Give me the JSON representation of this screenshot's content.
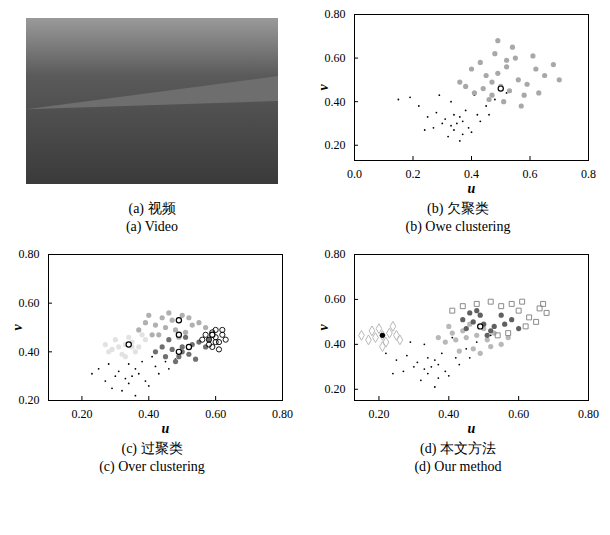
{
  "chart_data": [
    {
      "type": "image",
      "caption": [
        "(a) 视频",
        "(a) Video"
      ]
    },
    {
      "type": "scatter",
      "caption": [
        "(b) 欠聚类",
        "(b) Owe clustering"
      ],
      "x_label": "u",
      "y_label": "v",
      "xlim": [
        0,
        0.8
      ],
      "xticks": [
        0,
        0.2,
        0.4,
        0.6,
        0.8
      ],
      "ylim": [
        0.13,
        0.8
      ],
      "yticks": [
        0.2,
        0.4,
        0.6,
        0.8
      ],
      "series": [
        {
          "color": "#000000",
          "marker": "dot",
          "x": [
            0.35,
            0.33,
            0.37,
            0.31,
            0.39,
            0.34,
            0.36,
            0.3,
            0.42,
            0.28,
            0.45,
            0.25,
            0.4,
            0.32,
            0.38,
            0.27,
            0.48,
            0.22,
            0.43,
            0.36,
            0.33,
            0.29,
            0.41,
            0.19,
            0.52,
            0.15,
            0.37,
            0.46,
            0.24,
            0.34
          ],
          "y": [
            0.3,
            0.29,
            0.31,
            0.32,
            0.28,
            0.27,
            0.33,
            0.3,
            0.34,
            0.35,
            0.38,
            0.33,
            0.26,
            0.24,
            0.36,
            0.28,
            0.41,
            0.38,
            0.31,
            0.22,
            0.4,
            0.43,
            0.43,
            0.42,
            0.44,
            0.41,
            0.25,
            0.34,
            0.27,
            0.34
          ]
        },
        {
          "color": "#a8a8a8",
          "marker": "circle",
          "x": [
            0.5,
            0.47,
            0.53,
            0.44,
            0.56,
            0.49,
            0.52,
            0.41,
            0.59,
            0.46,
            0.62,
            0.38,
            0.55,
            0.48,
            0.65,
            0.43,
            0.58,
            0.51,
            0.68,
            0.45,
            0.54,
            0.61,
            0.4,
            0.57,
            0.7,
            0.49,
            0.36,
            0.63,
            0.52,
            0.47
          ],
          "y": [
            0.47,
            0.49,
            0.45,
            0.46,
            0.5,
            0.53,
            0.56,
            0.44,
            0.48,
            0.41,
            0.55,
            0.47,
            0.6,
            0.62,
            0.52,
            0.58,
            0.43,
            0.4,
            0.57,
            0.52,
            0.65,
            0.61,
            0.55,
            0.38,
            0.5,
            0.68,
            0.49,
            0.44,
            0.59,
            0.43
          ]
        },
        {
          "color": "#000000",
          "marker": "ring",
          "x": [
            0.5
          ],
          "y": [
            0.46
          ]
        }
      ]
    },
    {
      "type": "scatter",
      "caption": [
        "(c) 过聚类",
        "(c) Over clustering"
      ],
      "x_label": "u",
      "y_label": "v",
      "xlim": [
        0.1,
        0.8
      ],
      "xticks": [
        0.2,
        0.4,
        0.6,
        0.8
      ],
      "ylim": [
        0.2,
        0.8
      ],
      "yticks": [
        0.2,
        0.4,
        0.6,
        0.8
      ],
      "series": [
        {
          "color": "#000000",
          "marker": "dot",
          "x": [
            0.35,
            0.33,
            0.37,
            0.31,
            0.39,
            0.34,
            0.36,
            0.3,
            0.42,
            0.28,
            0.45,
            0.25,
            0.4,
            0.32,
            0.38,
            0.27,
            0.48,
            0.23,
            0.43,
            0.36,
            0.41,
            0.29,
            0.46,
            0.34
          ],
          "y": [
            0.3,
            0.29,
            0.31,
            0.32,
            0.28,
            0.27,
            0.33,
            0.3,
            0.34,
            0.35,
            0.36,
            0.33,
            0.26,
            0.24,
            0.36,
            0.28,
            0.37,
            0.31,
            0.31,
            0.22,
            0.38,
            0.25,
            0.33,
            0.35
          ]
        },
        {
          "color": "#e2e2e2",
          "marker": "circle",
          "x": [
            0.33,
            0.31,
            0.35,
            0.29,
            0.37,
            0.34,
            0.32,
            0.27,
            0.39,
            0.3,
            0.36,
            0.33,
            0.28,
            0.38,
            0.35
          ],
          "y": [
            0.43,
            0.42,
            0.44,
            0.41,
            0.42,
            0.46,
            0.39,
            0.43,
            0.45,
            0.45,
            0.4,
            0.38,
            0.4,
            0.47,
            0.42
          ]
        },
        {
          "color": "#b0b0b0",
          "marker": "circle",
          "x": [
            0.45,
            0.42,
            0.48,
            0.39,
            0.51,
            0.44,
            0.47,
            0.37,
            0.53,
            0.41,
            0.55,
            0.43,
            0.5,
            0.46,
            0.57,
            0.4,
            0.52,
            0.49
          ],
          "y": [
            0.5,
            0.51,
            0.49,
            0.52,
            0.48,
            0.54,
            0.53,
            0.49,
            0.51,
            0.47,
            0.52,
            0.47,
            0.55,
            0.56,
            0.5,
            0.55,
            0.54,
            0.46
          ]
        },
        {
          "color": "#707070",
          "marker": "circle",
          "x": [
            0.5,
            0.47,
            0.53,
            0.44,
            0.55,
            0.49,
            0.52,
            0.42,
            0.57,
            0.46,
            0.51,
            0.48,
            0.54,
            0.45,
            0.58,
            0.5
          ],
          "y": [
            0.42,
            0.41,
            0.43,
            0.42,
            0.44,
            0.38,
            0.39,
            0.4,
            0.42,
            0.45,
            0.46,
            0.36,
            0.37,
            0.38,
            0.45,
            0.4
          ]
        },
        {
          "color": "#000000",
          "marker": "circle_open",
          "x": [
            0.6,
            0.58,
            0.62,
            0.59,
            0.61,
            0.57,
            0.63,
            0.6,
            0.58,
            0.62,
            0.59,
            0.61,
            0.56,
            0.6
          ],
          "y": [
            0.46,
            0.45,
            0.47,
            0.48,
            0.44,
            0.47,
            0.45,
            0.49,
            0.43,
            0.49,
            0.42,
            0.41,
            0.45,
            0.44
          ]
        },
        {
          "color": "#000000",
          "marker": "ring",
          "x": [
            0.34,
            0.49,
            0.49,
            0.49,
            0.52,
            0.59
          ],
          "y": [
            0.43,
            0.53,
            0.47,
            0.4,
            0.42,
            0.47
          ]
        }
      ]
    },
    {
      "type": "scatter",
      "caption": [
        "(d) 本文方法",
        "(d) Our method"
      ],
      "x_label": "u",
      "y_label": "v",
      "xlim": [
        0.13,
        0.8
      ],
      "xticks": [
        0.2,
        0.4,
        0.6,
        0.8
      ],
      "ylim": [
        0.15,
        0.8
      ],
      "yticks": [
        0.2,
        0.4,
        0.6,
        0.8
      ],
      "series": [
        {
          "color": "#000000",
          "marker": "dot",
          "x": [
            0.35,
            0.33,
            0.37,
            0.31,
            0.39,
            0.34,
            0.36,
            0.3,
            0.42,
            0.28,
            0.45,
            0.25,
            0.4,
            0.32,
            0.38,
            0.27,
            0.48,
            0.22,
            0.43,
            0.36,
            0.33,
            0.29,
            0.41,
            0.52,
            0.37,
            0.46,
            0.24,
            0.34
          ],
          "y": [
            0.3,
            0.29,
            0.31,
            0.32,
            0.28,
            0.27,
            0.33,
            0.3,
            0.34,
            0.35,
            0.38,
            0.33,
            0.26,
            0.24,
            0.36,
            0.28,
            0.41,
            0.36,
            0.31,
            0.21,
            0.4,
            0.41,
            0.43,
            0.44,
            0.25,
            0.34,
            0.27,
            0.34
          ]
        },
        {
          "color": "#b8b8b8",
          "marker": "diamond",
          "x": [
            0.21,
            0.19,
            0.23,
            0.17,
            0.25,
            0.2,
            0.22,
            0.15,
            0.24,
            0.18,
            0.26,
            0.21
          ],
          "y": [
            0.44,
            0.43,
            0.45,
            0.42,
            0.44,
            0.47,
            0.41,
            0.44,
            0.48,
            0.46,
            0.42,
            0.39
          ]
        },
        {
          "color": "#b8b8b8",
          "marker": "circle",
          "x": [
            0.45,
            0.42,
            0.48,
            0.39,
            0.51,
            0.44,
            0.47,
            0.37,
            0.53,
            0.41,
            0.55,
            0.43,
            0.5,
            0.46,
            0.57,
            0.4,
            0.52,
            0.49
          ],
          "y": [
            0.43,
            0.42,
            0.44,
            0.41,
            0.42,
            0.46,
            0.38,
            0.43,
            0.45,
            0.45,
            0.4,
            0.37,
            0.47,
            0.49,
            0.43,
            0.48,
            0.39,
            0.36
          ]
        },
        {
          "color": "#606060",
          "marker": "circle",
          "x": [
            0.5,
            0.47,
            0.53,
            0.44,
            0.56,
            0.49,
            0.52,
            0.45,
            0.58,
            0.48,
            0.55,
            0.51,
            0.6,
            0.46
          ],
          "y": [
            0.49,
            0.5,
            0.48,
            0.51,
            0.49,
            0.53,
            0.46,
            0.47,
            0.51,
            0.55,
            0.53,
            0.44,
            0.47,
            0.54
          ]
        },
        {
          "color": "#8a8a8a",
          "marker": "square",
          "x": [
            0.6,
            0.63,
            0.66,
            0.58,
            0.55,
            0.68,
            0.62,
            0.52,
            0.48,
            0.44,
            0.65,
            0.57,
            0.41,
            0.61,
            0.67,
            0.54
          ],
          "y": [
            0.55,
            0.52,
            0.56,
            0.58,
            0.57,
            0.54,
            0.48,
            0.59,
            0.58,
            0.57,
            0.5,
            0.45,
            0.55,
            0.59,
            0.58,
            0.44
          ]
        },
        {
          "color": "#000000",
          "marker": "circle",
          "x": [
            0.21
          ],
          "y": [
            0.44
          ]
        },
        {
          "color": "#000000",
          "marker": "ring",
          "x": [
            0.49
          ],
          "y": [
            0.48
          ]
        }
      ]
    }
  ]
}
